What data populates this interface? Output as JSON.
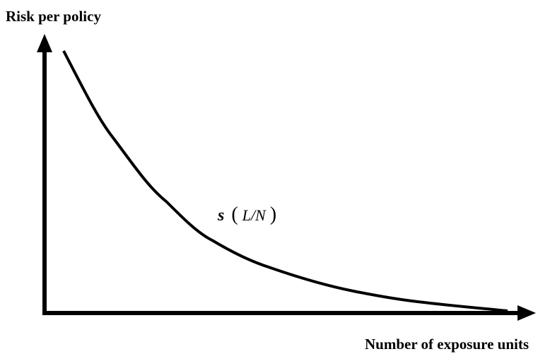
{
  "y_axis": {
    "label": "Risk per policy"
  },
  "x_axis": {
    "label": "Number of exposure units"
  },
  "curve_label": {
    "symbol": "s",
    "open": "(",
    "argument": "L/N",
    "close": ")"
  }
}
